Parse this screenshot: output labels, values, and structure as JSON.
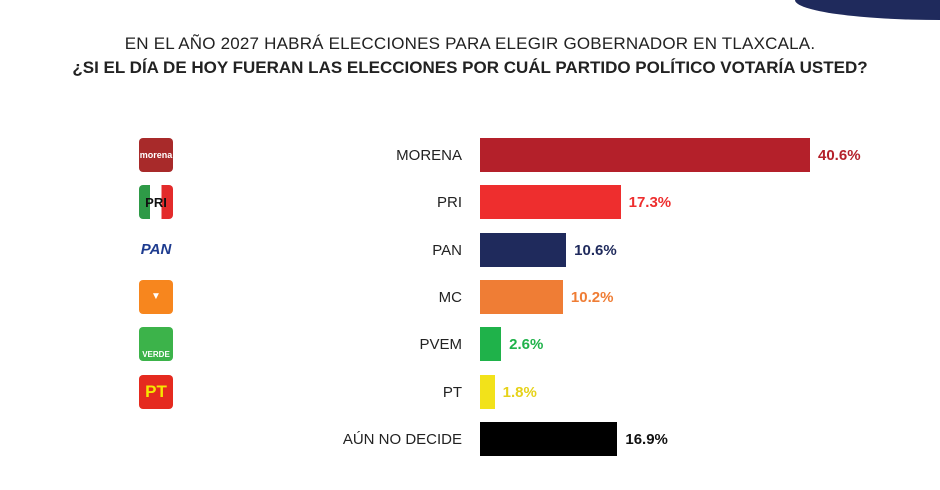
{
  "title": "EN EL AÑO 2027 HABRÁ ELECCIONES PARA ELEGIR GOBERNADOR EN TLAXCALA.",
  "subtitle": "¿SI EL DÍA DE HOY FUERAN LAS ELECCIONES POR CUÁL PARTIDO POLÍTICO VOTARÍA USTED?",
  "chart_data": {
    "type": "bar",
    "orientation": "horizontal",
    "title": "EN EL AÑO 2027 HABRÁ ELECCIONES PARA ELEGIR GOBERNADOR EN TLAXCALA.",
    "subtitle": "¿SI EL DÍA DE HOY FUERAN LAS ELECCIONES POR CUÁL PARTIDO POLÍTICO VOTARÍA USTED?",
    "categories": [
      "MORENA",
      "PRI",
      "PAN",
      "MC",
      "PVEM",
      "PT",
      "AÚN NO DECIDE"
    ],
    "values": [
      40.6,
      17.3,
      10.6,
      10.2,
      2.6,
      1.8,
      16.9
    ],
    "labels": [
      "40.6%",
      "17.3%",
      "10.6%",
      "10.2%",
      "2.6%",
      "1.8%",
      "16.9%"
    ],
    "colors": [
      "#b4202a",
      "#ee2e2e",
      "#1f2a5c",
      "#ef7d35",
      "#1fb24a",
      "#f2e21a",
      "#000000"
    ],
    "label_colors": [
      "#b4202a",
      "#ee2e2e",
      "#1f2a5c",
      "#ef7d35",
      "#1fb24a",
      "#e6d21a",
      "#111111"
    ],
    "logos": [
      "morena",
      "PRI",
      "PAN",
      "MC",
      "VERDE",
      "PT",
      null
    ],
    "logo_colors": [
      "#a82a2a",
      "#cfcfcf",
      "#ffffff",
      "#f7861e",
      "#3cb34a",
      "#e52a1f",
      null
    ],
    "xlabel": "",
    "ylabel": "",
    "grid": false
  }
}
